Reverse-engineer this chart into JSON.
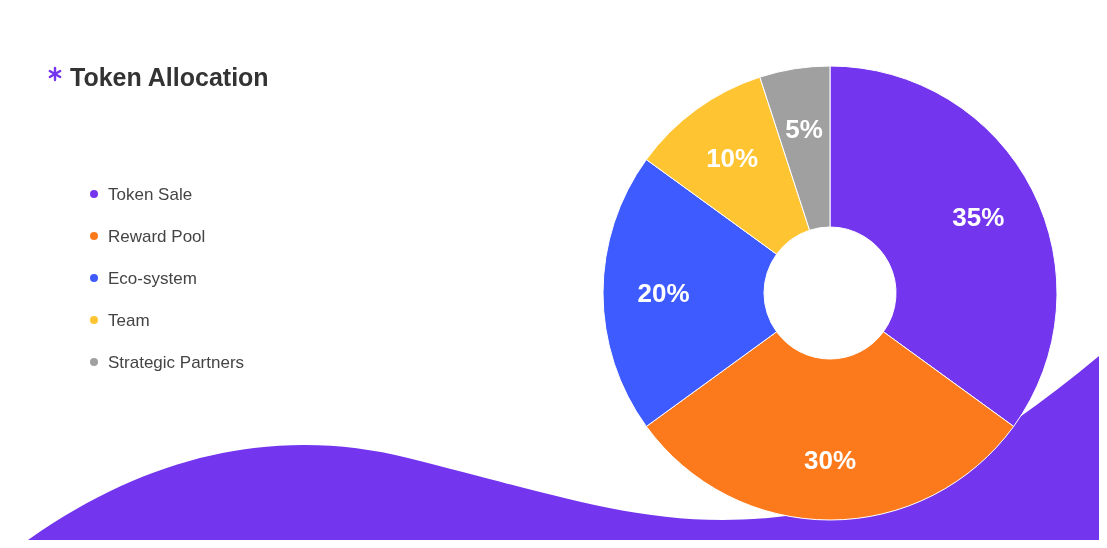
{
  "chart_data": {
    "type": "donut",
    "title": "Token Allocation",
    "categories": [
      "Token Sale",
      "Reward Pool",
      "Eco-system",
      "Team",
      "Strategic Partners"
    ],
    "values": [
      35,
      30,
      20,
      10,
      5
    ],
    "colors": [
      "#7335ee",
      "#fd7a1c",
      "#3e5bff",
      "#ffc431",
      "#a0a0a0"
    ],
    "value_labels": [
      "35%",
      "30%",
      "20%",
      "10%",
      "5%"
    ],
    "legend": "left"
  }
}
